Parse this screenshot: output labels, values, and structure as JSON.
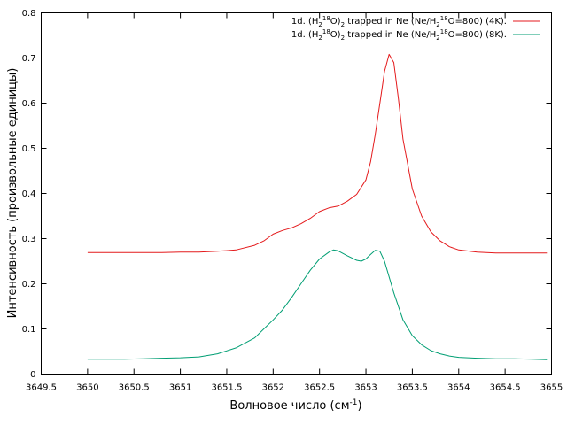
{
  "chart_data": {
    "type": "line",
    "xlabel_main": "Волновое число (см",
    "xlabel_sup": "-1",
    "xlabel_close": ")",
    "ylabel": "Интенсивность (произвольные единицы)",
    "xlim": [
      3649.5,
      3655
    ],
    "ylim": [
      0,
      0.8
    ],
    "x_ticks": [
      3649.5,
      3650,
      3650.5,
      3651,
      3651.5,
      3652,
      3652.5,
      3653,
      3653.5,
      3654,
      3654.5,
      3655
    ],
    "x_tick_labels": [
      "3649.5",
      "3650",
      "3650.5",
      "3651",
      "3651.5",
      "3652",
      "3652.5",
      "3653",
      "3653.5",
      "3654",
      "3654.5",
      "3655"
    ],
    "y_ticks": [
      0,
      0.1,
      0.2,
      0.3,
      0.4,
      0.5,
      0.6,
      0.7,
      0.8
    ],
    "y_tick_labels": [
      "0",
      "0.1",
      "0.2",
      "0.3",
      "0.4",
      "0.5",
      "0.6",
      "0.7",
      "0.8"
    ],
    "grid": false,
    "legend_position": "top-right",
    "series": [
      {
        "name": "1d. (H218O)2 trapped in Ne (Ne/H218O=800) (4K).",
        "color": "#e41a1c",
        "x": [
          3650.0,
          3650.2,
          3650.4,
          3650.6,
          3650.8,
          3651.0,
          3651.2,
          3651.4,
          3651.6,
          3651.8,
          3651.9,
          3652.0,
          3652.1,
          3652.2,
          3652.3,
          3652.4,
          3652.5,
          3652.6,
          3652.7,
          3652.8,
          3652.9,
          3653.0,
          3653.05,
          3653.1,
          3653.15,
          3653.2,
          3653.25,
          3653.3,
          3653.35,
          3653.4,
          3653.5,
          3653.6,
          3653.7,
          3653.8,
          3653.9,
          3654.0,
          3654.2,
          3654.4,
          3654.6,
          3654.8,
          3654.95
        ],
        "y": [
          0.269,
          0.269,
          0.269,
          0.269,
          0.269,
          0.27,
          0.27,
          0.272,
          0.275,
          0.285,
          0.295,
          0.31,
          0.318,
          0.324,
          0.333,
          0.345,
          0.36,
          0.368,
          0.372,
          0.383,
          0.398,
          0.43,
          0.47,
          0.53,
          0.6,
          0.67,
          0.708,
          0.69,
          0.61,
          0.52,
          0.41,
          0.35,
          0.315,
          0.295,
          0.282,
          0.275,
          0.27,
          0.268,
          0.268,
          0.268,
          0.268
        ]
      },
      {
        "name": "1d. (H218O)2 trapped in Ne (Ne/H218O=800) (8K).",
        "color": "#009e73",
        "x": [
          3650.0,
          3650.2,
          3650.4,
          3650.6,
          3650.8,
          3651.0,
          3651.2,
          3651.4,
          3651.6,
          3651.8,
          3651.9,
          3652.0,
          3652.1,
          3652.2,
          3652.3,
          3652.4,
          3652.5,
          3652.6,
          3652.65,
          3652.7,
          3652.8,
          3652.9,
          3652.95,
          3653.0,
          3653.05,
          3653.1,
          3653.15,
          3653.2,
          3653.3,
          3653.4,
          3653.5,
          3653.6,
          3653.7,
          3653.8,
          3653.9,
          3654.0,
          3654.2,
          3654.4,
          3654.6,
          3654.8,
          3654.95
        ],
        "y": [
          0.033,
          0.033,
          0.033,
          0.034,
          0.035,
          0.036,
          0.038,
          0.045,
          0.058,
          0.08,
          0.1,
          0.12,
          0.142,
          0.17,
          0.2,
          0.23,
          0.255,
          0.27,
          0.275,
          0.273,
          0.262,
          0.252,
          0.25,
          0.255,
          0.265,
          0.274,
          0.272,
          0.25,
          0.18,
          0.12,
          0.085,
          0.065,
          0.052,
          0.045,
          0.04,
          0.037,
          0.035,
          0.034,
          0.034,
          0.033,
          0.032
        ]
      }
    ]
  },
  "legend": [
    {
      "pre": "1d. (H",
      "sub1": "2",
      "sup1": "18",
      "mid1": "O)",
      "sub2": "2",
      "mid2": " trapped in Ne (Ne/H",
      "sub3": "2",
      "sup2": "18",
      "post": "O=800) (4K)."
    },
    {
      "pre": "1d. (H",
      "sub1": "2",
      "sup1": "18",
      "mid1": "O)",
      "sub2": "2",
      "mid2": " trapped in Ne (Ne/H",
      "sub3": "2",
      "sup2": "18",
      "post": "O=800) (8K)."
    }
  ]
}
